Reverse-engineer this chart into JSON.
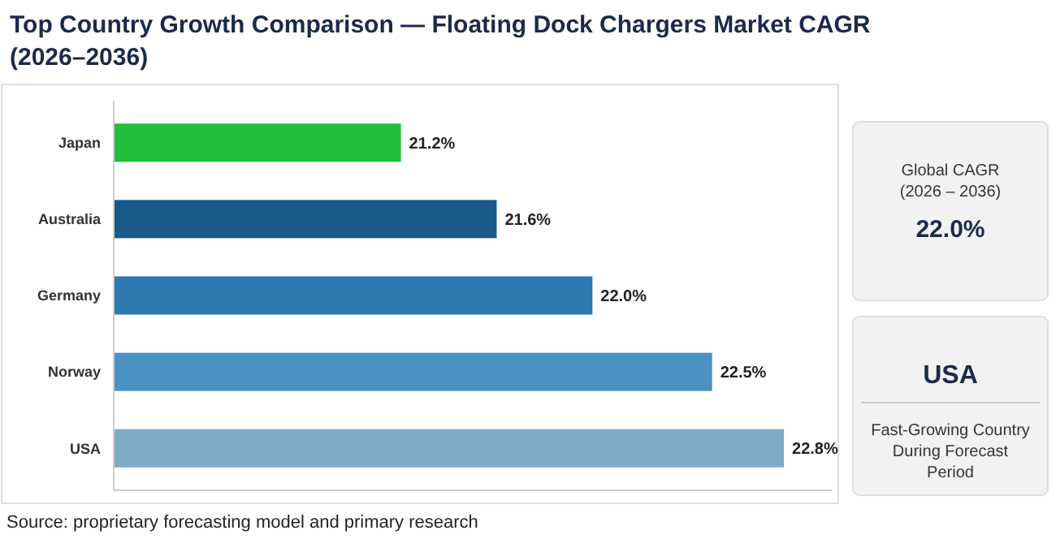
{
  "chart_data": {
    "type": "bar",
    "orientation": "horizontal",
    "title": "Top Country Growth Comparison — Floating Dock Chargers Market CAGR (2026–2036)",
    "categories": [
      "Japan",
      "Australia",
      "Germany",
      "Norway",
      "USA"
    ],
    "values": [
      21.2,
      21.6,
      22.0,
      22.5,
      22.8
    ],
    "colors": [
      "#1fbf3a",
      "#1a5a8a",
      "#2b79b0",
      "#4893c2",
      "#7fa9c6"
    ],
    "value_labels": [
      "21.2%",
      "21.6%",
      "22.0%",
      "22.5%",
      "22.8%"
    ],
    "xlim": [
      20,
      23
    ],
    "tick_labels": "y",
    "annotations": [
      "Global CAGR (2026 – 2036)",
      "22.0%",
      "USA",
      "Fast-Growing Country During Forecast Period",
      "Source: proprietary forecasting model and primary research"
    ]
  }
}
